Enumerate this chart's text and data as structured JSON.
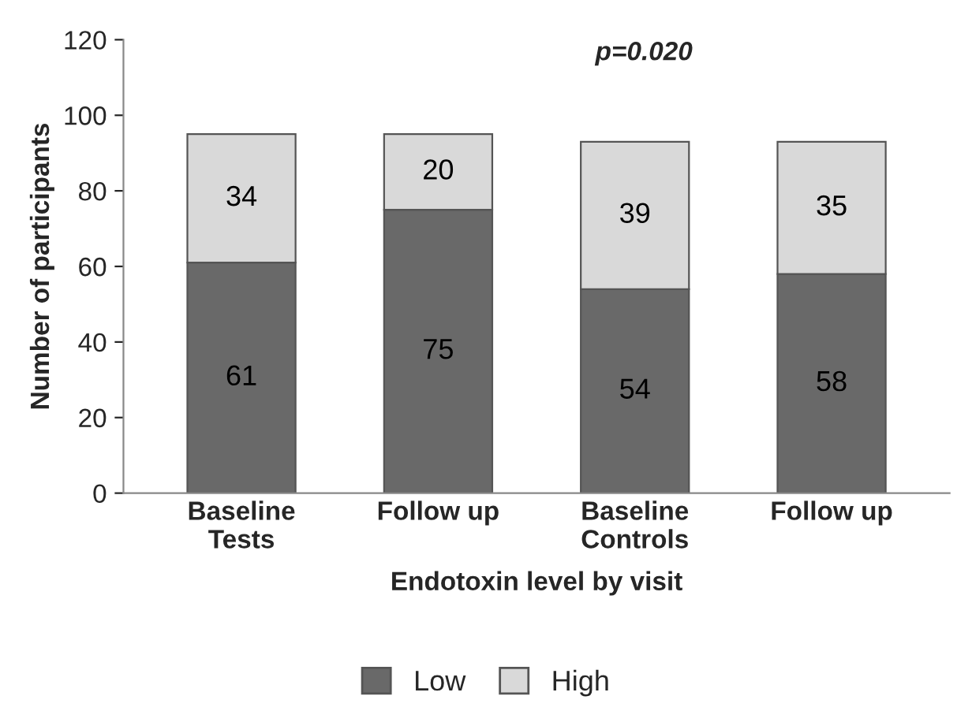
{
  "chart_data": {
    "type": "bar",
    "stacked": true,
    "categories": [
      "Baseline\nTests",
      "Follow up",
      "Baseline\nControls",
      "Follow up"
    ],
    "series": [
      {
        "name": "Low",
        "color": "#696969",
        "values": [
          61,
          75,
          54,
          58
        ]
      },
      {
        "name": "High",
        "color": "#d9d9d9",
        "values": [
          34,
          20,
          39,
          35
        ]
      }
    ],
    "xlabel": "Endotoxin level by visit",
    "ylabel": "Number of participants",
    "ylim": [
      0,
      120
    ],
    "yticks": [
      0,
      20,
      40,
      60,
      80,
      100,
      120
    ],
    "annotations": [
      "p=0.020"
    ],
    "data_labels": true,
    "grid": false,
    "legend": "bottom"
  }
}
